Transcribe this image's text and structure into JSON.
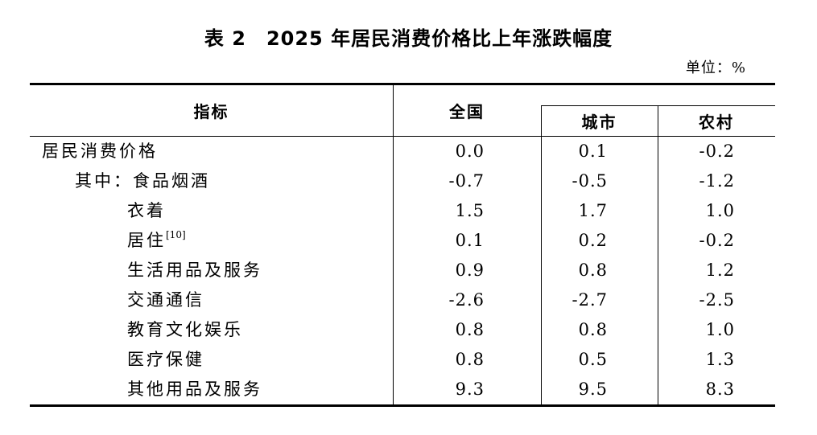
{
  "title": "表 2　2025 年居民消费价格比上年涨跌幅度",
  "unit_label": "单位：%",
  "table": {
    "headers": {
      "indicator": "指标",
      "national": "全国",
      "urban": "城市",
      "rural": "农村"
    },
    "rows": [
      {
        "label": "居民消费价格",
        "indent": 0,
        "national": "0.0",
        "urban": "0.1",
        "rural": "-0.2"
      },
      {
        "label": "其中：食品烟酒",
        "indent": 1,
        "national": "-0.7",
        "urban": "-0.5",
        "rural": "-1.2"
      },
      {
        "label": "衣着",
        "indent": 2,
        "national": "1.5",
        "urban": "1.7",
        "rural": "1.0"
      },
      {
        "label": "居住",
        "sup": "[10]",
        "indent": 2,
        "national": "0.1",
        "urban": "0.2",
        "rural": "-0.2"
      },
      {
        "label": "生活用品及服务",
        "indent": 2,
        "national": "0.9",
        "urban": "0.8",
        "rural": "1.2"
      },
      {
        "label": "交通通信",
        "indent": 2,
        "national": "-2.6",
        "urban": "-2.7",
        "rural": "-2.5"
      },
      {
        "label": "教育文化娱乐",
        "indent": 2,
        "national": "0.8",
        "urban": "0.8",
        "rural": "1.0"
      },
      {
        "label": "医疗保健",
        "indent": 2,
        "national": "0.8",
        "urban": "0.5",
        "rural": "1.3"
      },
      {
        "label": "其他用品及服务",
        "indent": 2,
        "national": "9.3",
        "urban": "9.5",
        "rural": "8.3"
      }
    ]
  },
  "chart_data": {
    "type": "table",
    "title": "表 2　2025 年居民消费价格比上年涨跌幅度",
    "unit": "%",
    "columns": [
      "指标",
      "全国",
      "城市",
      "农村"
    ],
    "categories": [
      "居民消费价格",
      "其中：食品烟酒",
      "衣着",
      "居住[10]",
      "生活用品及服务",
      "交通通信",
      "教育文化娱乐",
      "医疗保健",
      "其他用品及服务"
    ],
    "series": [
      {
        "name": "全国",
        "values": [
          0.0,
          -0.7,
          1.5,
          0.1,
          0.9,
          -2.6,
          0.8,
          0.8,
          9.3
        ]
      },
      {
        "name": "城市",
        "values": [
          0.1,
          -0.5,
          1.7,
          0.2,
          0.8,
          -2.7,
          0.8,
          0.5,
          9.5
        ]
      },
      {
        "name": "农村",
        "values": [
          -0.2,
          -1.2,
          1.0,
          -0.2,
          1.2,
          -2.5,
          1.0,
          1.3,
          8.3
        ]
      }
    ]
  }
}
